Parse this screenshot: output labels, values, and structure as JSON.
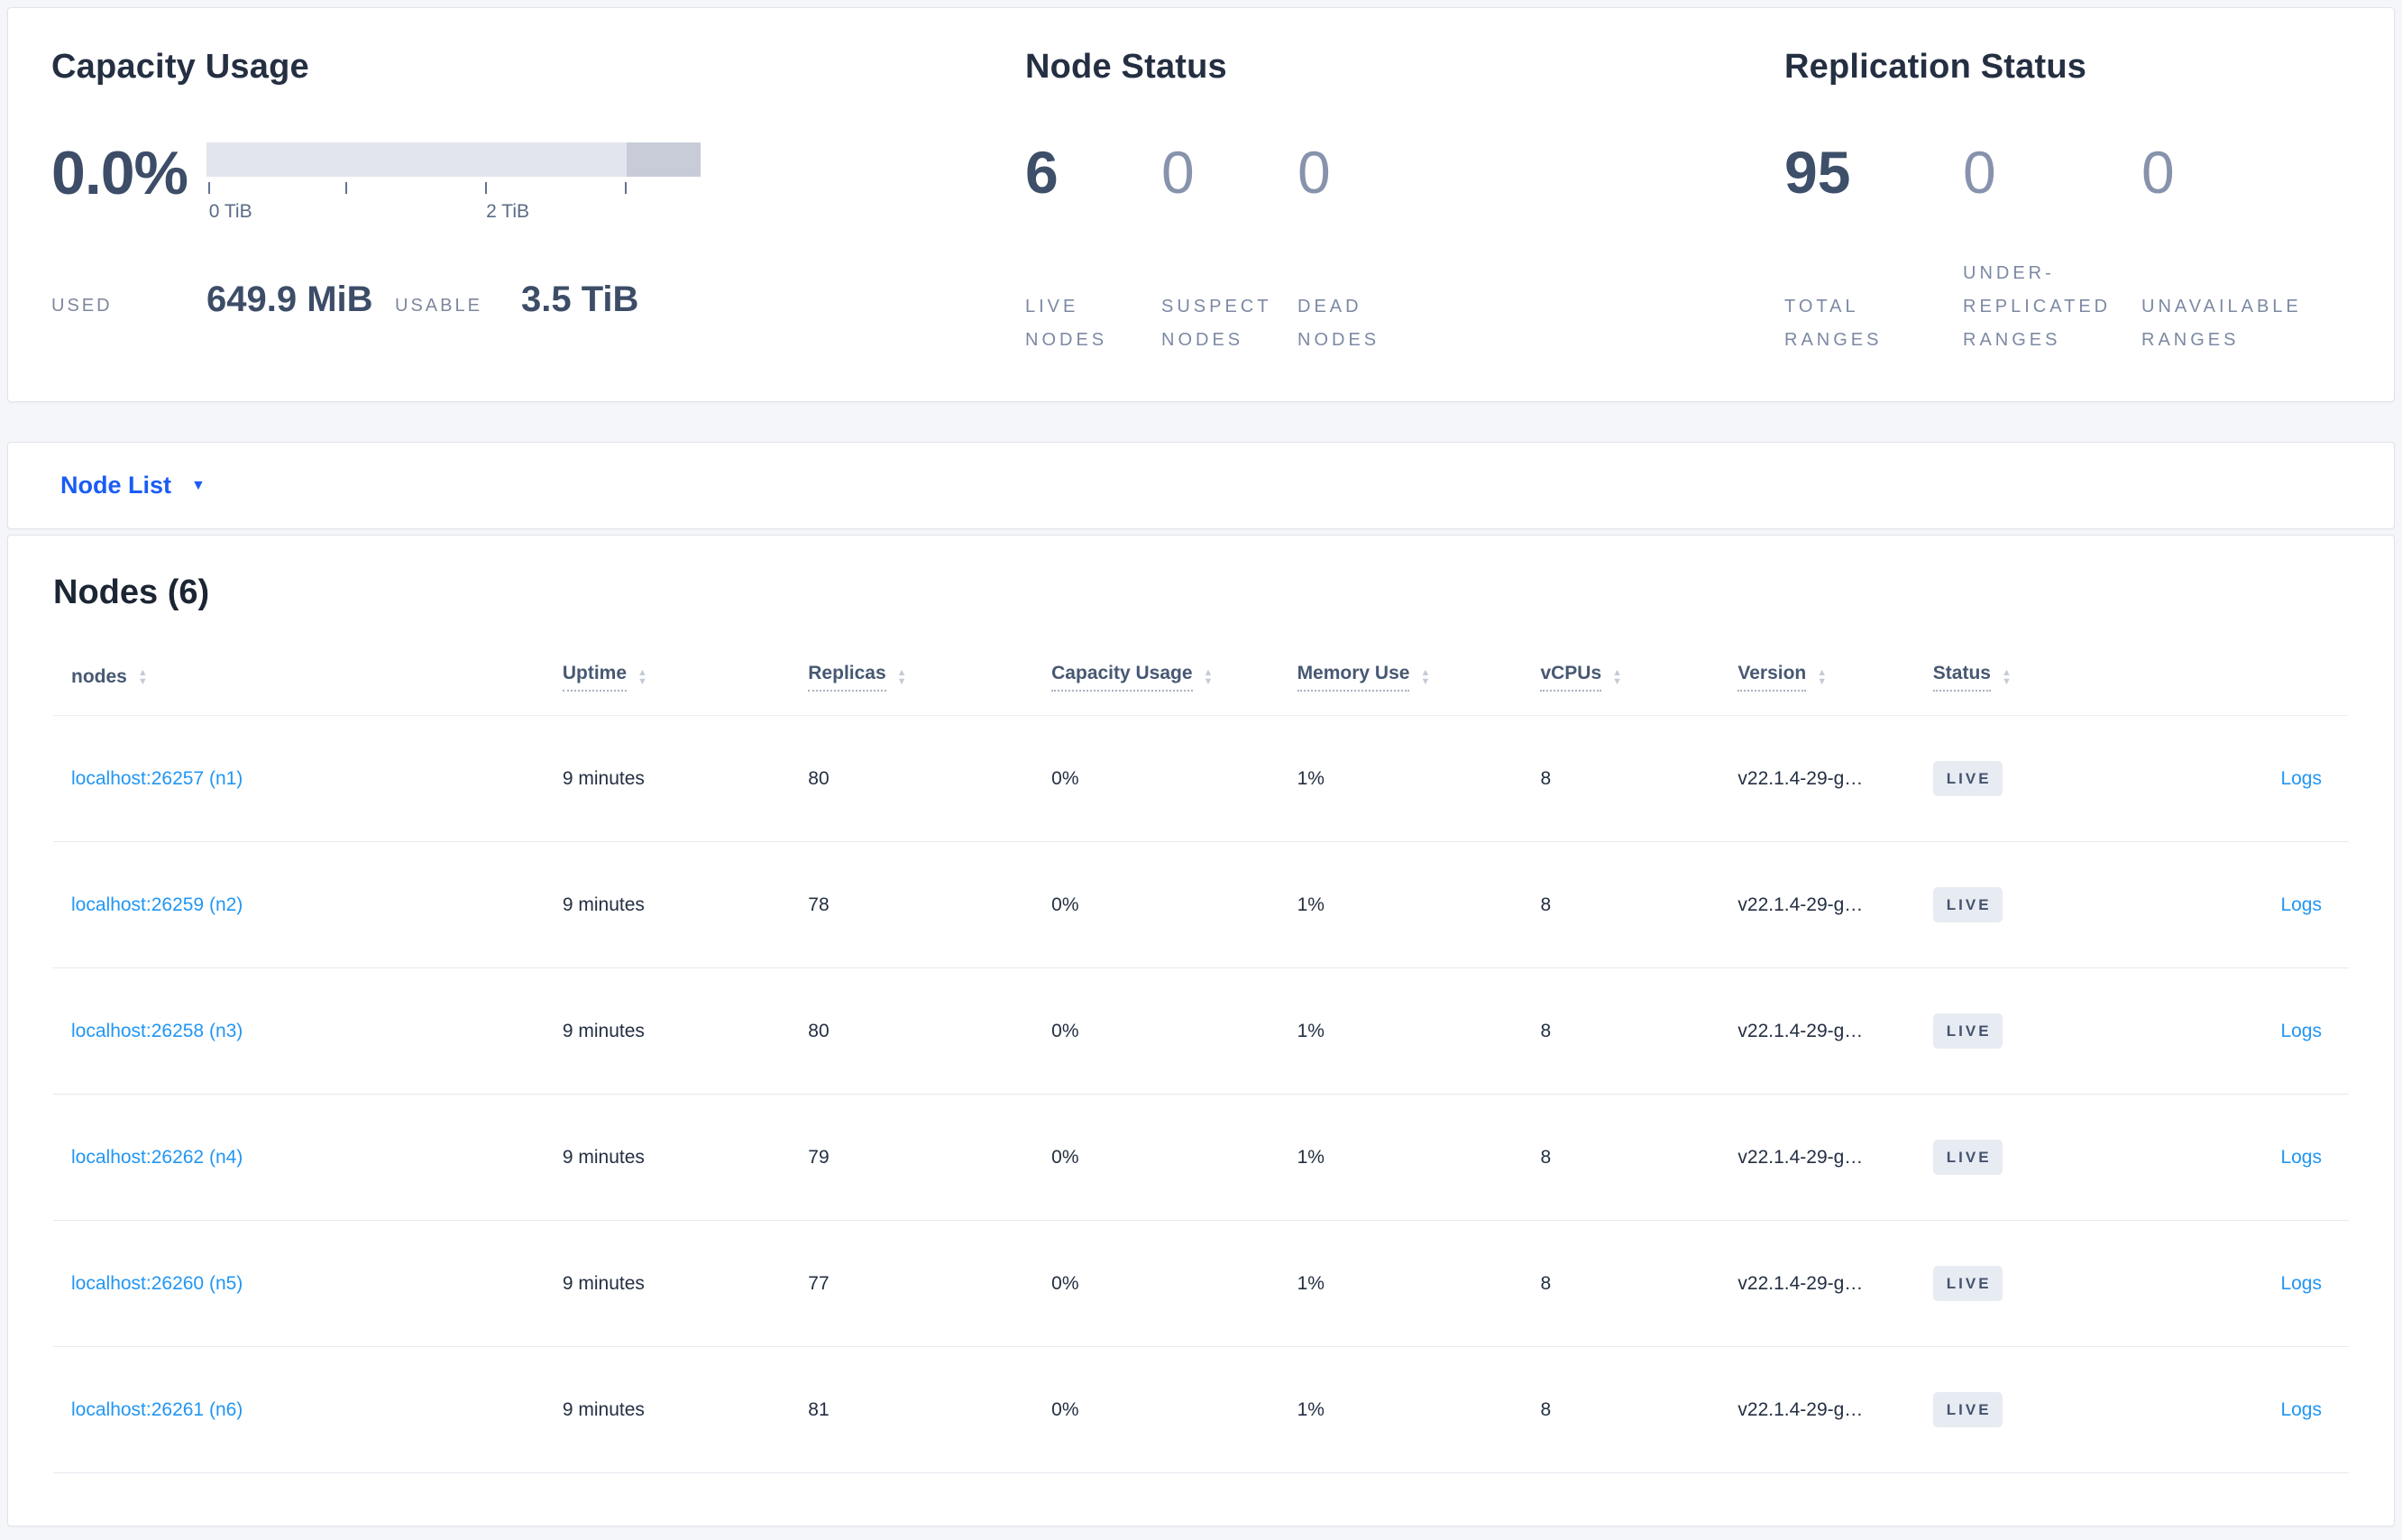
{
  "colors": {
    "page_bg": "#f4f6f9",
    "accent_blue": "#1a5cf5",
    "link_blue": "#2196f3",
    "dark_text": "#242f42",
    "stat_dark": "#3d4f69",
    "stat_muted": "#8793ad",
    "label_gray": "#7c89a3",
    "badge_bg": "#e7ebf2",
    "badge_text": "#44536e",
    "bar_track": "#e3e5ec",
    "bar_segment": "#c8ccd9",
    "row_divider": "#e7e9ef"
  },
  "capacity": {
    "title": "Capacity Usage",
    "percent": "0.0%",
    "used_label": "USED",
    "used_value": "649.9 MiB",
    "usable_label": "USABLE",
    "usable_value": "3.5 TiB",
    "bar_segment_start_pct": 85,
    "axis_ticks": [
      {
        "pos_pct": 0.5,
        "label": "0 TiB"
      },
      {
        "pos_pct": 28.3,
        "label": ""
      },
      {
        "pos_pct": 56.6,
        "label": "2 TiB"
      },
      {
        "pos_pct": 84.9,
        "label": ""
      }
    ]
  },
  "node_status": {
    "title": "Node Status",
    "stats": [
      {
        "value": "6",
        "label": "LIVE NODES",
        "muted": false
      },
      {
        "value": "0",
        "label": "SUSPECT NODES",
        "muted": true
      },
      {
        "value": "0",
        "label": "DEAD NODES",
        "muted": true
      }
    ]
  },
  "replication_status": {
    "title": "Replication Status",
    "stats": [
      {
        "value": "95",
        "label": "TOTAL RANGES",
        "muted": false
      },
      {
        "value": "0",
        "label": "UNDER-REPLICATED RANGES",
        "muted": true
      },
      {
        "value": "0",
        "label": "UNAVAILABLE RANGES",
        "muted": true
      }
    ]
  },
  "node_list_dropdown": {
    "label": "Node List"
  },
  "nodes_section": {
    "title": "Nodes (6)",
    "logs_label": "Logs",
    "columns": [
      {
        "key": "node",
        "label": "nodes",
        "underline": false
      },
      {
        "key": "uptime",
        "label": "Uptime",
        "underline": true
      },
      {
        "key": "replicas",
        "label": "Replicas",
        "underline": true
      },
      {
        "key": "capacity",
        "label": "Capacity Usage",
        "underline": true
      },
      {
        "key": "memory",
        "label": "Memory Use",
        "underline": true
      },
      {
        "key": "vcpus",
        "label": "vCPUs",
        "underline": true
      },
      {
        "key": "version",
        "label": "Version",
        "underline": true
      },
      {
        "key": "status",
        "label": "Status",
        "underline": true
      }
    ],
    "rows": [
      {
        "node": "localhost:26257 (n1)",
        "uptime": "9 minutes",
        "replicas": "80",
        "capacity": "0%",
        "memory": "1%",
        "vcpus": "8",
        "version": "v22.1.4-29-g…",
        "status": "LIVE"
      },
      {
        "node": "localhost:26259 (n2)",
        "uptime": "9 minutes",
        "replicas": "78",
        "capacity": "0%",
        "memory": "1%",
        "vcpus": "8",
        "version": "v22.1.4-29-g…",
        "status": "LIVE"
      },
      {
        "node": "localhost:26258 (n3)",
        "uptime": "9 minutes",
        "replicas": "80",
        "capacity": "0%",
        "memory": "1%",
        "vcpus": "8",
        "version": "v22.1.4-29-g…",
        "status": "LIVE"
      },
      {
        "node": "localhost:26262 (n4)",
        "uptime": "9 minutes",
        "replicas": "79",
        "capacity": "0%",
        "memory": "1%",
        "vcpus": "8",
        "version": "v22.1.4-29-g…",
        "status": "LIVE"
      },
      {
        "node": "localhost:26260 (n5)",
        "uptime": "9 minutes",
        "replicas": "77",
        "capacity": "0%",
        "memory": "1%",
        "vcpus": "8",
        "version": "v22.1.4-29-g…",
        "status": "LIVE"
      },
      {
        "node": "localhost:26261 (n6)",
        "uptime": "9 minutes",
        "replicas": "81",
        "capacity": "0%",
        "memory": "1%",
        "vcpus": "8",
        "version": "v22.1.4-29-g…",
        "status": "LIVE"
      }
    ]
  }
}
